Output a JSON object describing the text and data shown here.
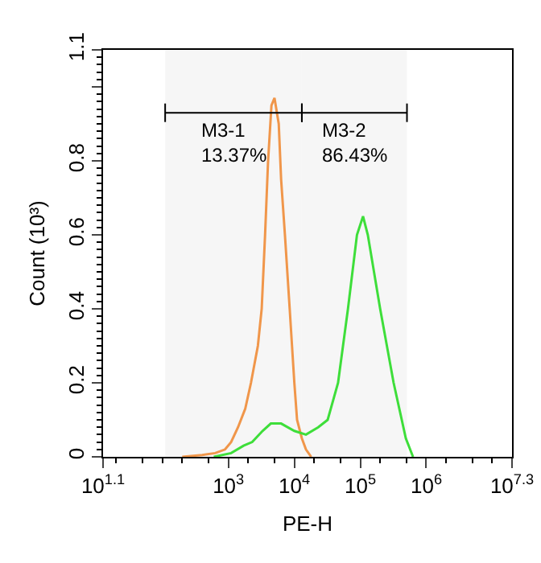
{
  "chart_data": {
    "type": "line",
    "xlabel": "PE-H",
    "ylabel": "Count (10³)",
    "log": "x",
    "xlim": [
      12.59,
      19950000
    ],
    "xticks": [
      {
        "value": 12.59,
        "label": "10$^{1.1}$"
      },
      {
        "value": 1000,
        "label": "10$^{3}$"
      },
      {
        "value": 10000,
        "label": "10$^{4}$"
      },
      {
        "value": 100000,
        "label": "10$^{5}$"
      },
      {
        "value": 1000000,
        "label": "10$^{6}$"
      },
      {
        "value": 19950000,
        "label": "10$^{7.3}$"
      }
    ],
    "ylim": [
      0,
      1.1
    ],
    "yticks": [
      0,
      0.2,
      0.4,
      0.6,
      0.8,
      {
        "value": 1,
        "label": null
      },
      1.1
    ],
    "grid": false,
    "marker": "none",
    "line_style": "solid",
    "series": [
      {
        "color": "#f0964a",
        "x": [
          200,
          400,
          630,
          890,
          1100,
          1400,
          1800,
          2200,
          2800,
          3200,
          3600,
          4000,
          4500,
          5000,
          5800,
          6300,
          7200,
          8500,
          10000,
          11000,
          13000,
          15000,
          18000
        ],
        "values": [
          0,
          0.005,
          0.01,
          0.02,
          0.04,
          0.08,
          0.13,
          0.2,
          0.3,
          0.4,
          0.6,
          0.8,
          0.95,
          0.97,
          0.9,
          0.75,
          0.6,
          0.4,
          0.2,
          0.1,
          0.05,
          0.02,
          0
        ]
      },
      {
        "color": "#3ede3a",
        "x": [
          600,
          1100,
          1700,
          2300,
          3300,
          4400,
          6300,
          10000,
          15000,
          23000,
          32000,
          46000,
          65000,
          89000,
          110000,
          130000,
          200000,
          320000,
          490000,
          630000
        ],
        "values": [
          0,
          0.01,
          0.03,
          0.04,
          0.07,
          0.09,
          0.09,
          0.07,
          0.06,
          0.08,
          0.1,
          0.2,
          0.4,
          0.6,
          0.65,
          0.6,
          0.4,
          0.2,
          0.05,
          0
        ]
      }
    ],
    "bands": [
      {
        "axis": "x",
        "from": 110,
        "to": 13000,
        "label": "M3-1\n13.37%"
      },
      {
        "axis": "x",
        "from": 13000,
        "to": 510000,
        "label": "M3-2\n86.43%"
      }
    ]
  }
}
